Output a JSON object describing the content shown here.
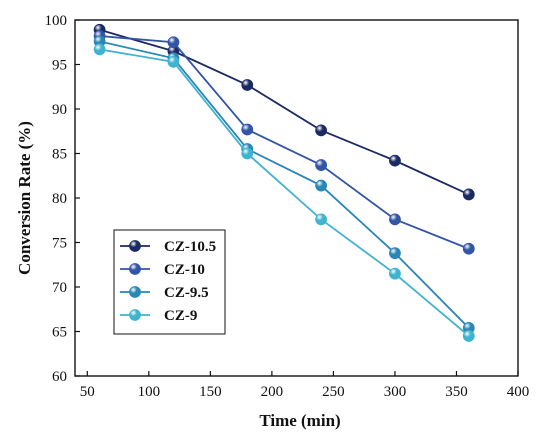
{
  "chart_data": {
    "type": "line",
    "title": "",
    "xlabel": "Time (min)",
    "ylabel": "Conversion Rate (%)",
    "xlim": [
      40,
      400
    ],
    "ylim": [
      60,
      100
    ],
    "xticks": [
      50,
      100,
      150,
      200,
      250,
      300,
      350,
      400
    ],
    "yticks": [
      60,
      65,
      70,
      75,
      80,
      85,
      90,
      95,
      100
    ],
    "grid": false,
    "legend_position": "bottom-left",
    "x": [
      60,
      120,
      180,
      240,
      300,
      360
    ],
    "series": [
      {
        "name": "CZ-10.5",
        "color": "#1b2a63",
        "values": [
          98.9,
          96.5,
          92.7,
          87.6,
          84.2,
          80.4
        ]
      },
      {
        "name": "CZ-10",
        "color": "#3355a6",
        "values": [
          98.2,
          97.5,
          87.7,
          83.7,
          77.6,
          74.3
        ]
      },
      {
        "name": "CZ-9.5",
        "color": "#2a86b5",
        "values": [
          97.6,
          95.7,
          85.5,
          81.4,
          73.8,
          65.4
        ]
      },
      {
        "name": "CZ-9",
        "color": "#3fb3cf",
        "values": [
          96.7,
          95.3,
          85.0,
          77.6,
          71.5,
          64.5
        ]
      }
    ]
  }
}
